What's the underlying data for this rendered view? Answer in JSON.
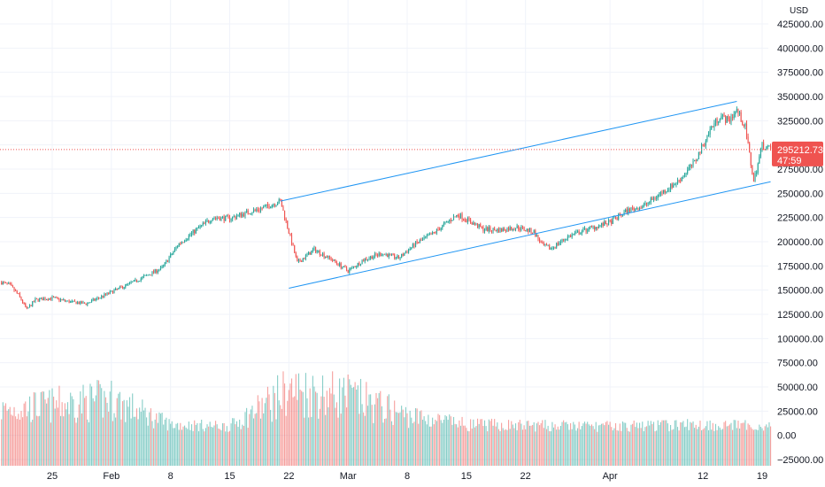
{
  "chart_data": {
    "type": "candlestick",
    "currency": "USD",
    "y_ticks": [
      425000,
      400000,
      375000,
      350000,
      325000,
      300000,
      275000,
      250000,
      225000,
      200000,
      175000,
      150000,
      125000,
      100000,
      75000,
      50000,
      25000,
      0,
      -25000
    ],
    "y_tick_labels": [
      "425000.00",
      "400000.00",
      "375000.00",
      "350000.00",
      "325000.00",
      "300000.00",
      "275000.00",
      "250000.00",
      "225000.00",
      "200000.00",
      "175000.00",
      "150000.00",
      "125000.00",
      "100000.00",
      "75000.00",
      "50000.00",
      "25000.00",
      "0.00",
      "−25000.00"
    ],
    "ylim": [
      -37000,
      436000
    ],
    "x_tick_labels": [
      "25",
      "Feb",
      "8",
      "15",
      "22",
      "Mar",
      "8",
      "15",
      "22",
      "Apr",
      "12",
      "19"
    ],
    "x_ticks": [
      "Jan 25",
      "Feb 1",
      "Feb 8",
      "Feb 15",
      "Feb 22",
      "Mar 1",
      "Mar 8",
      "Mar 15",
      "Mar 22",
      "Apr 1",
      "Apr 12",
      "Apr 19"
    ],
    "price_path": [
      [
        "Jan 19",
        158000
      ],
      [
        "Jan 20",
        155000
      ],
      [
        "Jan 21",
        145000
      ],
      [
        "Jan 22",
        130000
      ],
      [
        "Jan 23",
        140000
      ],
      [
        "Jan 25",
        142000
      ],
      [
        "Jan 27",
        138000
      ],
      [
        "Jan 29",
        136000
      ],
      [
        "Feb 1",
        148000
      ],
      [
        "Feb 4",
        160000
      ],
      [
        "Feb 7",
        173000
      ],
      [
        "Feb 9",
        198000
      ],
      [
        "Feb 11",
        212000
      ],
      [
        "Feb 13",
        225000
      ],
      [
        "Feb 15",
        224000
      ],
      [
        "Feb 17",
        230000
      ],
      [
        "Feb 19",
        235000
      ],
      [
        "Feb 21",
        242000
      ],
      [
        "Feb 22",
        210000
      ],
      [
        "Feb 23",
        178000
      ],
      [
        "Feb 25",
        192000
      ],
      [
        "Feb 27",
        182000
      ],
      [
        "Mar 1",
        170000
      ],
      [
        "Mar 3",
        182000
      ],
      [
        "Mar 5",
        188000
      ],
      [
        "Mar 7",
        183000
      ],
      [
        "Mar 9",
        198000
      ],
      [
        "Mar 11",
        208000
      ],
      [
        "Mar 13",
        222000
      ],
      [
        "Mar 14",
        228000
      ],
      [
        "Mar 17",
        213000
      ],
      [
        "Mar 19",
        212000
      ],
      [
        "Mar 21",
        215000
      ],
      [
        "Mar 23",
        210000
      ],
      [
        "Mar 24",
        196000
      ],
      [
        "Mar 25",
        193000
      ],
      [
        "Mar 27",
        205000
      ],
      [
        "Mar 29",
        212000
      ],
      [
        "Apr 1",
        220000
      ],
      [
        "Apr 3",
        232000
      ],
      [
        "Apr 5",
        237000
      ],
      [
        "Apr 7",
        250000
      ],
      [
        "Apr 9",
        262000
      ],
      [
        "Apr 11",
        282000
      ],
      [
        "Apr 13",
        318000
      ],
      [
        "Apr 14",
        330000
      ],
      [
        "Apr 15",
        325000
      ],
      [
        "Apr 16",
        336000
      ],
      [
        "Apr 17",
        318000
      ],
      [
        "Apr 18",
        262000
      ],
      [
        "Apr 19",
        300000
      ],
      [
        "Apr 20",
        295212.73
      ]
    ],
    "volume_profile": [
      [
        "Jan 19",
        28000
      ],
      [
        "Feb 1",
        40000
      ],
      [
        "Feb 8",
        12000
      ],
      [
        "Feb 15",
        10000
      ],
      [
        "Feb 22",
        50000
      ],
      [
        "Mar 1",
        44000
      ],
      [
        "Mar 8",
        22000
      ],
      [
        "Mar 15",
        12000
      ],
      [
        "Mar 22",
        11000
      ],
      [
        "Apr 1",
        10000
      ],
      [
        "Apr 12",
        12000
      ],
      [
        "Apr 20",
        10000
      ]
    ],
    "last_price": 295212.73,
    "last_price_label": "295212.73",
    "countdown": "47:59",
    "channel_lines": [
      {
        "from": [
          "Feb 21",
          242000
        ],
        "to": [
          "Apr 16",
          345000
        ]
      },
      {
        "from": [
          "Feb 22",
          152000
        ],
        "to": [
          "Apr 20",
          262000
        ]
      }
    ],
    "colors": {
      "up": "#26a69a",
      "down": "#ef5350",
      "channel": "#2196f3",
      "grid": "#f0f3fa",
      "price_label_bg": "#ef5350"
    },
    "grid": true
  }
}
